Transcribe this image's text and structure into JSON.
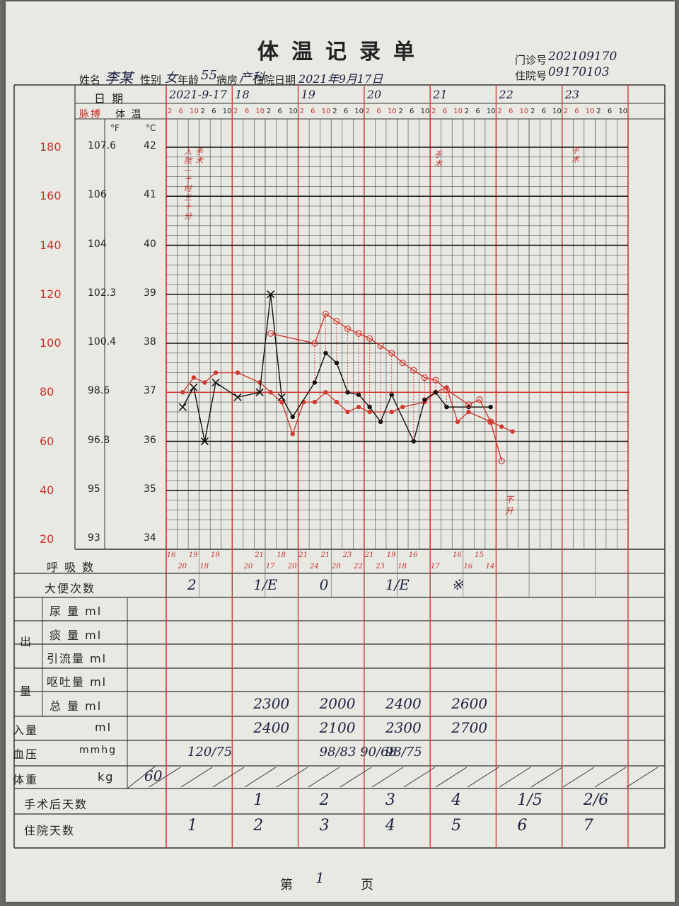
{
  "sheet": {
    "title": "体温记录单",
    "clinic_no_label": "门诊号",
    "clinic_no": "202109170",
    "admit_no_label": "住院号",
    "admit_no": "09170103",
    "name_label": "姓名",
    "name": "李某",
    "sex_label": "性别",
    "sex": "女",
    "age_label": "年龄",
    "age": "55",
    "ward_label": "病房",
    "ward": "产科",
    "admit_date_label": "住院日期",
    "admit_date": "2021年9月17日",
    "page_prefix": "第",
    "page_no": "1",
    "page_suffix": "页"
  },
  "header_rows": {
    "date_label": "日 期",
    "pulse_label": "脉搏",
    "temp_label": "体 温",
    "fahrenheit": "°F",
    "celsius": "°C",
    "dates": [
      "2021-9-17",
      "18",
      "19",
      "20",
      "21",
      "22",
      "23"
    ],
    "hours": [
      "2",
      "6",
      "10",
      "2",
      "6",
      "10"
    ]
  },
  "axis": {
    "pulse": [
      "180",
      "160",
      "140",
      "120",
      "100",
      "80",
      "60",
      "40",
      "20"
    ],
    "fahrenheit": [
      "107.6",
      "106",
      "104",
      "102.3",
      "100.4",
      "98.6",
      "96.8",
      "95",
      "93"
    ],
    "celsius": [
      "42",
      "41",
      "40",
      "39",
      "38",
      "37",
      "36",
      "35",
      "34"
    ]
  },
  "annotations": {
    "admit_vertical": "入院—十时三十分",
    "surgery_1": "手术",
    "surgery_2": "手术",
    "surgery_3": "手术",
    "refused": "不升"
  },
  "chart_data": {
    "type": "line",
    "x_unit": "4-hour slot index from 2021-9-17 02:00",
    "temperature_c": [
      {
        "x": 1,
        "y": 36.7
      },
      {
        "x": 2,
        "y": 37.1
      },
      {
        "x": 3,
        "y": 36.0
      },
      {
        "x": 4,
        "y": 37.2
      },
      {
        "x": 6,
        "y": 36.9
      },
      {
        "x": 8,
        "y": 37.0
      },
      {
        "x": 9,
        "y": 39.0
      },
      {
        "x": 10,
        "y": 36.9
      },
      {
        "x": 11,
        "y": 36.5
      },
      {
        "x": 13,
        "y": 37.2
      },
      {
        "x": 14,
        "y": 37.8
      },
      {
        "x": 15,
        "y": 37.6
      },
      {
        "x": 16,
        "y": 37.0
      },
      {
        "x": 17,
        "y": 36.95
      },
      {
        "x": 18,
        "y": 36.7
      },
      {
        "x": 19,
        "y": 36.4
      },
      {
        "x": 20,
        "y": 36.95
      },
      {
        "x": 22,
        "y": 36.0
      },
      {
        "x": 23,
        "y": 36.85
      },
      {
        "x": 24,
        "y": 37.0
      },
      {
        "x": 25,
        "y": 36.7
      },
      {
        "x": 27,
        "y": 36.7
      },
      {
        "x": 29,
        "y": 36.7
      }
    ],
    "pulse": [
      {
        "x": 1,
        "y": 80
      },
      {
        "x": 2,
        "y": 86
      },
      {
        "x": 3,
        "y": 84
      },
      {
        "x": 4,
        "y": 88
      },
      {
        "x": 6,
        "y": 88
      },
      {
        "x": 8,
        "y": 84
      },
      {
        "x": 9,
        "y": 80
      },
      {
        "x": 10,
        "y": 76
      },
      {
        "x": 11,
        "y": 63
      },
      {
        "x": 12,
        "y": 76
      },
      {
        "x": 13,
        "y": 76
      },
      {
        "x": 14,
        "y": 80
      },
      {
        "x": 15,
        "y": 76
      },
      {
        "x": 16,
        "y": 72
      },
      {
        "x": 17,
        "y": 74
      },
      {
        "x": 18,
        "y": 72
      },
      {
        "x": 20,
        "y": 72
      },
      {
        "x": 21,
        "y": 74
      },
      {
        "x": 23,
        "y": 76
      },
      {
        "x": 24,
        "y": 80
      },
      {
        "x": 25,
        "y": 82
      },
      {
        "x": 26,
        "y": 68
      },
      {
        "x": 27,
        "y": 72
      },
      {
        "x": 29,
        "y": 68
      },
      {
        "x": 30,
        "y": 66
      },
      {
        "x": 31,
        "y": 64
      }
    ],
    "temperature_physical_cooling": [
      {
        "x": 9,
        "y": 38.2
      },
      {
        "x": 13,
        "y": 38.0
      },
      {
        "x": 14,
        "y": 38.6
      },
      {
        "x": 15,
        "y": 38.45
      },
      {
        "x": 16,
        "y": 38.3
      },
      {
        "x": 17,
        "y": 38.2
      },
      {
        "x": 18,
        "y": 38.1
      },
      {
        "x": 19,
        "y": 37.95
      },
      {
        "x": 20,
        "y": 37.8
      },
      {
        "x": 21,
        "y": 37.6
      },
      {
        "x": 22,
        "y": 37.45
      },
      {
        "x": 23,
        "y": 37.3
      },
      {
        "x": 24,
        "y": 37.25
      },
      {
        "x": 25,
        "y": 37.05
      },
      {
        "x": 27,
        "y": 36.75
      },
      {
        "x": 28,
        "y": 36.85
      },
      {
        "x": 29,
        "y": 36.4
      },
      {
        "x": 30,
        "y": 35.6
      }
    ]
  },
  "rows": {
    "respiration_label": "呼 吸 数",
    "respiration": [
      {
        "x": 0,
        "v": "16",
        "pos": "top"
      },
      {
        "x": 1,
        "v": "20",
        "pos": "bottom"
      },
      {
        "x": 2,
        "v": "19",
        "pos": "top"
      },
      {
        "x": 3,
        "v": "18",
        "pos": "bottom"
      },
      {
        "x": 4,
        "v": "19",
        "pos": "top"
      },
      {
        "x": 7,
        "v": "20",
        "pos": "bottom"
      },
      {
        "x": 8,
        "v": "21",
        "pos": "top"
      },
      {
        "x": 9,
        "v": "17",
        "pos": "bottom"
      },
      {
        "x": 10,
        "v": "18",
        "pos": "top"
      },
      {
        "x": 11,
        "v": "20",
        "pos": "bottom"
      },
      {
        "x": 12,
        "v": "21",
        "pos": "top"
      },
      {
        "x": 13,
        "v": "24",
        "pos": "bottom"
      },
      {
        "x": 14,
        "v": "21",
        "pos": "top"
      },
      {
        "x": 15,
        "v": "20",
        "pos": "bottom"
      },
      {
        "x": 16,
        "v": "23",
        "pos": "top"
      },
      {
        "x": 17,
        "v": "22",
        "pos": "bottom"
      },
      {
        "x": 18,
        "v": "21",
        "pos": "top"
      },
      {
        "x": 19,
        "v": "23",
        "pos": "bottom"
      },
      {
        "x": 20,
        "v": "19",
        "pos": "top"
      },
      {
        "x": 21,
        "v": "18",
        "pos": "bottom"
      },
      {
        "x": 22,
        "v": "16",
        "pos": "top"
      },
      {
        "x": 24,
        "v": "17",
        "pos": "bottom"
      },
      {
        "x": 26,
        "v": "16",
        "pos": "top"
      },
      {
        "x": 27,
        "v": "16",
        "pos": "bottom"
      },
      {
        "x": 28,
        "v": "15",
        "pos": "top"
      },
      {
        "x": 29,
        "v": "14",
        "pos": "bottom"
      }
    ],
    "stool_label": "大便次数",
    "stool": [
      "2",
      "1/E",
      "0",
      "1/E",
      "※",
      "",
      ""
    ],
    "output_label": "出量",
    "urine_label": "尿 量 ml",
    "sputum_label": "痰 量 ml",
    "drain_label": "引流量 ml",
    "vomit_label": "呕吐量 ml",
    "total_out_label": "总 量 ml",
    "total_out": [
      "",
      "2300",
      "2000",
      "2400",
      "2600",
      "",
      ""
    ],
    "intake_label": "入量",
    "intake_unit": "ml",
    "intake": [
      "",
      "2400",
      "2100",
      "2300",
      "2700",
      "",
      ""
    ],
    "bp_label": "血压",
    "bp_unit": "mmhg",
    "bp": [
      "120/75",
      "",
      "98/83  90/68",
      "98/75",
      "",
      "",
      ""
    ],
    "weight_label": "体重",
    "weight_unit": "kg",
    "weight": [
      "60",
      "",
      "",
      "",
      "",
      "",
      ""
    ],
    "post_op_label": "手术后天数",
    "post_op": [
      "",
      "1",
      "2",
      "3",
      "4",
      "1/5",
      "2/6"
    ],
    "hosp_day_label": "住院天数",
    "hosp_day": [
      "1",
      "2",
      "3",
      "4",
      "5",
      "6",
      "7"
    ]
  }
}
